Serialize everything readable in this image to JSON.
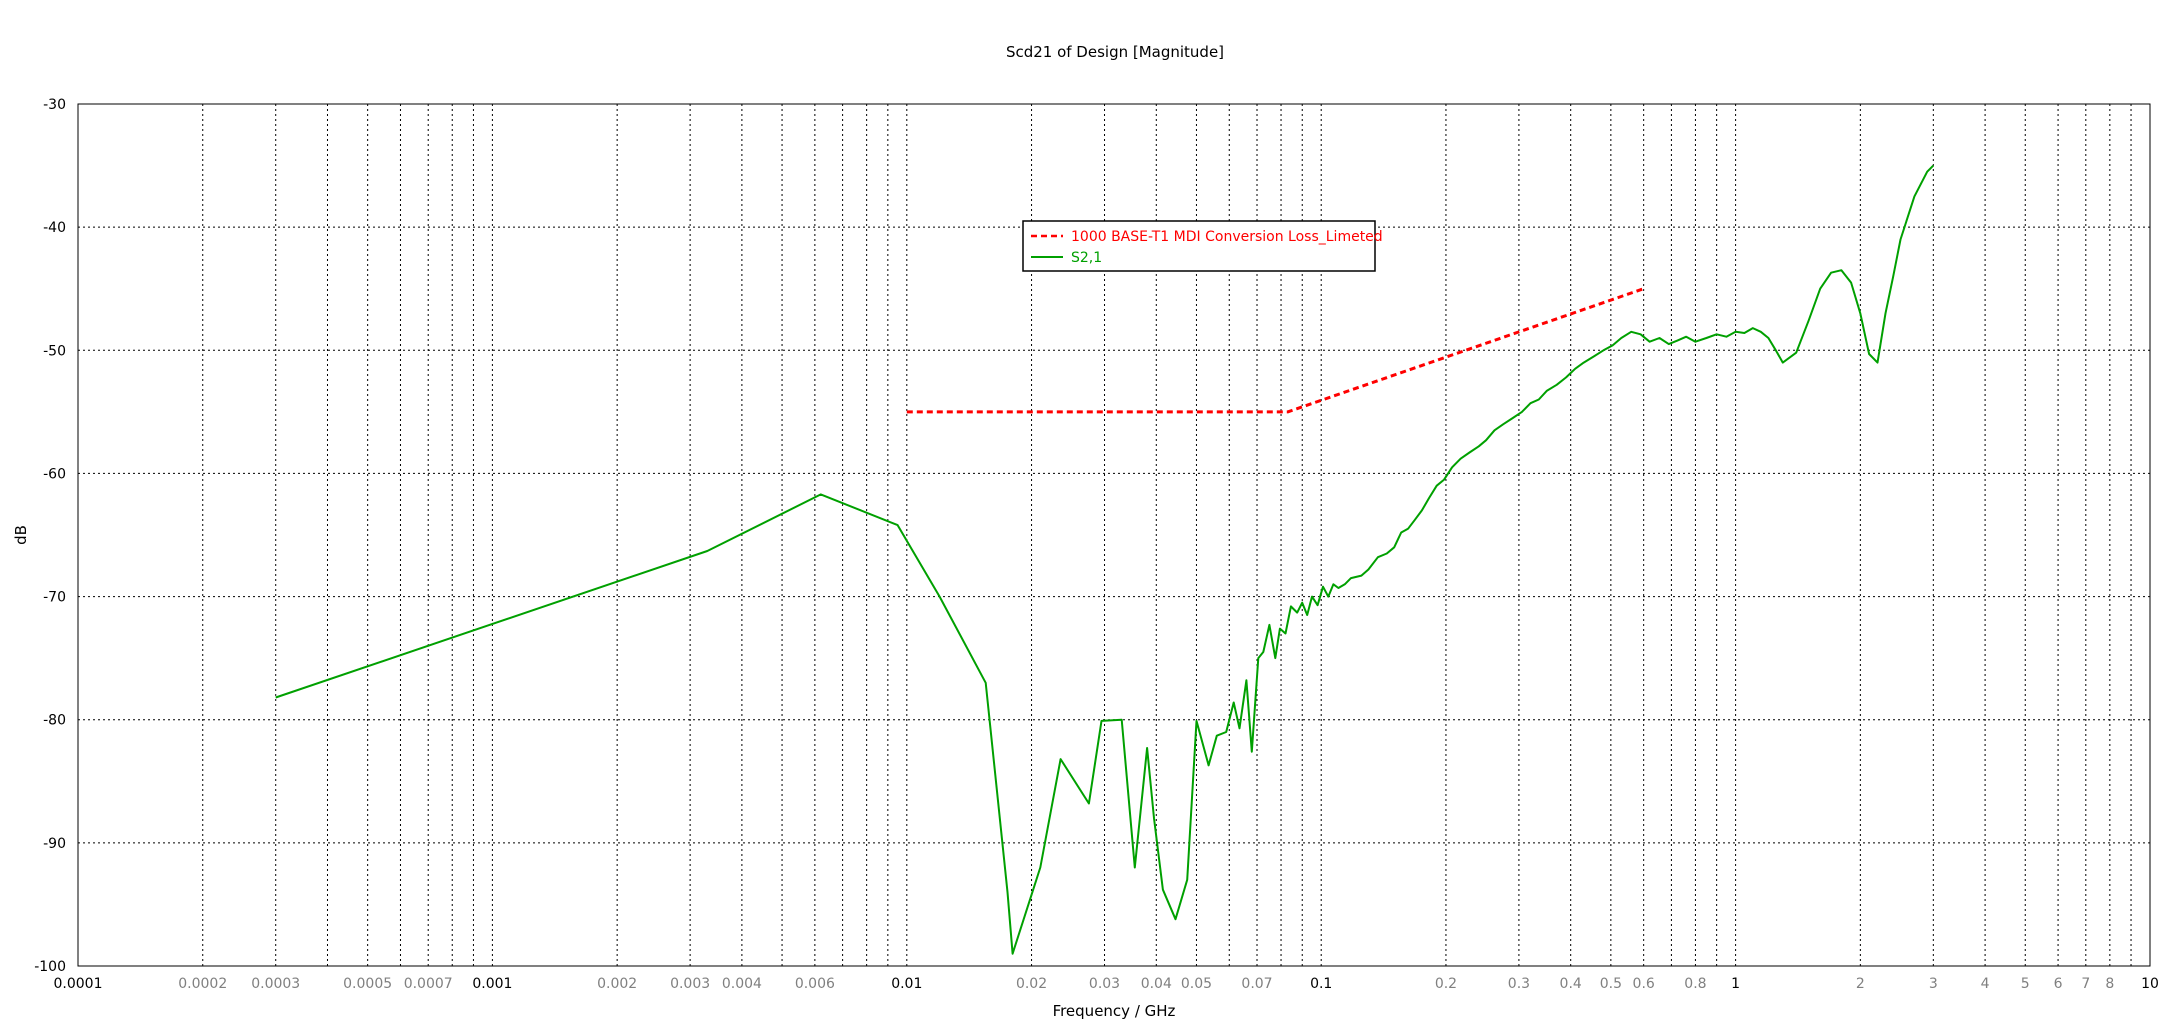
{
  "chart_data": {
    "type": "line",
    "title": "Scd21 of Design [Magnitude]",
    "xlabel": "Frequency / GHz",
    "ylabel": "dB",
    "x_scale": "log",
    "xlim": [
      0.0001,
      10
    ],
    "ylim": [
      -100,
      -30
    ],
    "grid": true,
    "legend_position": "top-center",
    "x_tick_labels": [
      "0.0001",
      "0.0002",
      "0.0003",
      "0.0005",
      "0.0007",
      "0.001",
      "0.002",
      "0.003",
      "0.004",
      "0.006",
      "0.01",
      "0.02",
      "0.03",
      "0.04",
      "0.05",
      "0.07",
      "0.1",
      "0.2",
      "0.3",
      "0.4",
      "0.5",
      "0.6",
      "0.8",
      "1",
      "2",
      "3",
      "4",
      "5",
      "6",
      "7",
      "8",
      "10"
    ],
    "y_tick_labels": [
      "-30",
      "-40",
      "-50",
      "-60",
      "-70",
      "-80",
      "-90",
      "-100"
    ],
    "series": [
      {
        "name": "1000 BASE-T1 MDI Conversion Loss_Limeted",
        "color": "#ff0000",
        "style": "dashed",
        "x": [
          0.01,
          0.083,
          0.6
        ],
        "y": [
          -55,
          -55,
          -45
        ]
      },
      {
        "name": "S2,1",
        "color": "#00a000",
        "style": "solid",
        "x": [
          0.0003,
          0.0033,
          0.0062,
          0.0095,
          0.012,
          0.0155,
          0.0175,
          0.018,
          0.021,
          0.0235,
          0.0275,
          0.0295,
          0.033,
          0.0355,
          0.038,
          0.0395,
          0.0415,
          0.0445,
          0.0475,
          0.05,
          0.0535,
          0.056,
          0.059,
          0.0615,
          0.0635,
          0.066,
          0.068,
          0.0705,
          0.0725,
          0.075,
          0.0775,
          0.0795,
          0.082,
          0.0845,
          0.0875,
          0.09,
          0.0925,
          0.095,
          0.098,
          0.101,
          0.104,
          0.107,
          0.11,
          0.114,
          0.118,
          0.125,
          0.13,
          0.137,
          0.144,
          0.15,
          0.156,
          0.162,
          0.168,
          0.175,
          0.182,
          0.19,
          0.198,
          0.207,
          0.217,
          0.228,
          0.24,
          0.25,
          0.262,
          0.275,
          0.29,
          0.305,
          0.32,
          0.335,
          0.35,
          0.37,
          0.39,
          0.41,
          0.43,
          0.455,
          0.48,
          0.505,
          0.53,
          0.56,
          0.59,
          0.62,
          0.655,
          0.69,
          0.725,
          0.76,
          0.8,
          0.85,
          0.9,
          0.95,
          1.0,
          1.05,
          1.1,
          1.15,
          1.2,
          1.25,
          1.3,
          1.4,
          1.5,
          1.6,
          1.7,
          1.8,
          1.9,
          2.0,
          2.1,
          2.2,
          2.3,
          2.4,
          2.5,
          2.7,
          2.9,
          3.0
        ],
        "y": [
          -78.2,
          -66.3,
          -61.7,
          -64.2,
          -70.0,
          -77.0,
          -94.0,
          -99.0,
          -92.0,
          -83.2,
          -86.8,
          -80.1,
          -80.0,
          -92.0,
          -82.3,
          -88.0,
          -93.8,
          -96.2,
          -93.0,
          -80.1,
          -83.7,
          -81.3,
          -81.0,
          -78.6,
          -80.7,
          -76.8,
          -82.6,
          -75.0,
          -74.5,
          -72.3,
          -75.0,
          -72.6,
          -73.0,
          -70.8,
          -71.3,
          -70.5,
          -71.5,
          -70.0,
          -70.7,
          -69.2,
          -70.0,
          -69.0,
          -69.3,
          -69.0,
          -68.5,
          -68.3,
          -67.8,
          -66.8,
          -66.5,
          -66.0,
          -64.8,
          -64.5,
          -63.8,
          -63.0,
          -62.0,
          -61.0,
          -60.5,
          -59.5,
          -58.8,
          -58.3,
          -57.8,
          -57.3,
          -56.5,
          -56.0,
          -55.5,
          -55.0,
          -54.3,
          -54.0,
          -53.3,
          -52.8,
          -52.2,
          -51.5,
          -51.0,
          -50.5,
          -50.0,
          -49.6,
          -49.0,
          -48.5,
          -48.7,
          -49.3,
          -49.0,
          -49.5,
          -49.2,
          -48.9,
          -49.3,
          -49.0,
          -48.7,
          -48.9,
          -48.5,
          -48.6,
          -48.2,
          -48.5,
          -49.0,
          -50.0,
          -51.0,
          -50.2,
          -47.6,
          -45.0,
          -43.7,
          -43.5,
          -44.5,
          -47.0,
          -50.3,
          -51.0,
          -47.0,
          -44.0,
          -41.0,
          -37.5,
          -35.5,
          -35.0
        ]
      }
    ]
  }
}
